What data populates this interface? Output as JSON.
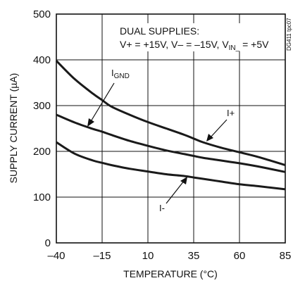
{
  "chart_data": {
    "type": "line",
    "xlabel": "TEMPERATURE (°C)",
    "ylabel": "SUPPLY CURRENT (µA)",
    "xlim": [
      -40,
      85
    ],
    "ylim": [
      0,
      500
    ],
    "xticks": [
      -40,
      -15,
      10,
      35,
      60,
      85
    ],
    "yticks": [
      0,
      100,
      200,
      300,
      400,
      500
    ],
    "grid": true,
    "annotation": {
      "line1": "DUAL SUPPLIES:",
      "line2_parts": [
        "V+ = +15V, V– = –15V, V",
        "IN_",
        " = +5V"
      ]
    },
    "doc_code": "DG411 tpc07",
    "series": [
      {
        "name": "IGND",
        "label_main": "I",
        "label_sub": "GND",
        "x": [
          -40,
          -30,
          -20,
          -15,
          -10,
          0,
          10,
          20,
          30,
          35,
          40,
          50,
          60,
          70,
          85
        ],
        "values": [
          398,
          358,
          326,
          312,
          298,
          280,
          264,
          250,
          236,
          228,
          220,
          208,
          198,
          188,
          170
        ]
      },
      {
        "name": "I+",
        "label_main": "I+",
        "label_sub": "",
        "x": [
          -40,
          -30,
          -20,
          -15,
          -10,
          0,
          10,
          20,
          30,
          35,
          40,
          50,
          60,
          70,
          85
        ],
        "values": [
          280,
          263,
          249,
          243,
          236,
          223,
          212,
          202,
          194,
          190,
          186,
          180,
          174,
          167,
          155
        ]
      },
      {
        "name": "I-",
        "label_main": "I-",
        "label_sub": "",
        "x": [
          -40,
          -30,
          -20,
          -15,
          -10,
          0,
          10,
          20,
          30,
          35,
          40,
          50,
          60,
          70,
          85
        ],
        "values": [
          220,
          195,
          180,
          175,
          170,
          162,
          156,
          150,
          146,
          143,
          140,
          134,
          128,
          124,
          117
        ]
      }
    ]
  }
}
